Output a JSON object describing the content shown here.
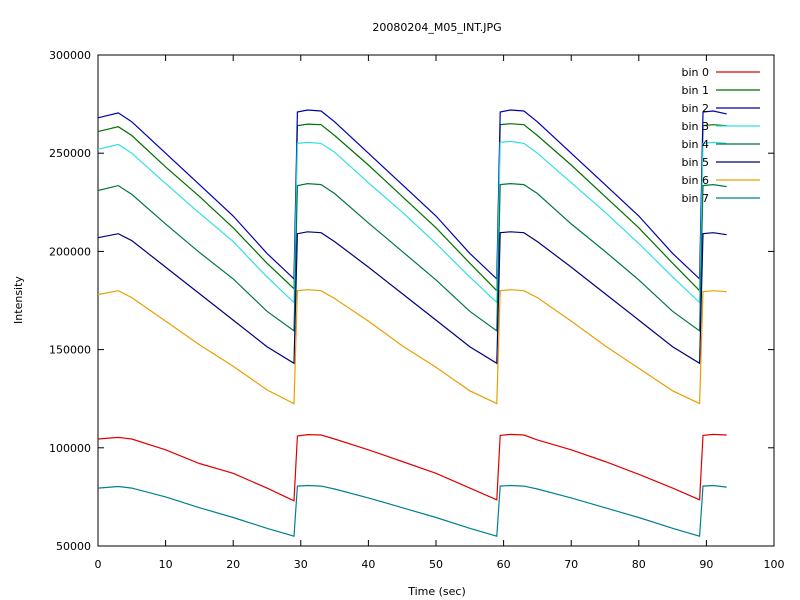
{
  "chart_data": {
    "type": "line",
    "title": "20080204_M05_INT.JPG",
    "xlabel": "Time (sec)",
    "ylabel": "Intensity",
    "xlim": [
      0,
      100
    ],
    "ylim": [
      50000,
      300000
    ],
    "xticks": [
      0,
      10,
      20,
      30,
      40,
      50,
      60,
      70,
      80,
      90,
      100
    ],
    "yticks": [
      50000,
      100000,
      150000,
      200000,
      250000,
      300000
    ],
    "ytick_labels": [
      "50000",
      "100000",
      "150000",
      "200000",
      "250000",
      "300000"
    ],
    "grid": false,
    "legend_position": "top-right",
    "x": [
      0,
      3,
      5,
      10,
      15,
      20,
      25,
      29,
      29.5,
      31,
      33,
      35,
      40,
      45,
      50,
      55,
      59,
      59.5,
      61,
      63,
      65,
      70,
      75,
      80,
      85,
      89,
      89.5,
      91,
      93
    ],
    "series": [
      {
        "name": "bin 0",
        "color": "#e00000",
        "values": [
          104500,
          105300,
          104500,
          99000,
          92000,
          87000,
          79500,
          73000,
          106000,
          106700,
          106500,
          104500,
          99000,
          93000,
          87000,
          79500,
          73500,
          106300,
          106800,
          106500,
          104000,
          99000,
          93000,
          86500,
          79500,
          73500,
          106300,
          106800,
          106500
        ]
      },
      {
        "name": "bin 1",
        "color": "#007000",
        "values": [
          261000,
          263500,
          259000,
          243000,
          228000,
          212000,
          194000,
          181000,
          264000,
          264800,
          264500,
          259000,
          244000,
          228000,
          212000,
          194000,
          180000,
          264500,
          265000,
          264500,
          259000,
          244000,
          228000,
          212000,
          194000,
          180000,
          264000,
          264500,
          264000
        ]
      },
      {
        "name": "bin 2",
        "color": "#0000b0",
        "values": [
          268000,
          270500,
          266000,
          250000,
          234000,
          218000,
          199000,
          186000,
          271000,
          272000,
          271500,
          266000,
          250000,
          234000,
          218000,
          199000,
          186000,
          271000,
          272000,
          271500,
          266000,
          250000,
          234000,
          218000,
          199000,
          186000,
          271000,
          271500,
          270000
        ]
      },
      {
        "name": "bin 3",
        "color": "#30e0e0",
        "values": [
          252000,
          254500,
          250000,
          234500,
          219500,
          205000,
          187000,
          174000,
          255000,
          255500,
          255000,
          250500,
          235000,
          220000,
          204000,
          187000,
          174000,
          255500,
          256000,
          255000,
          250000,
          235000,
          220000,
          204000,
          187000,
          174000,
          255000,
          255500,
          255000
        ]
      },
      {
        "name": "bin 4",
        "color": "#007840",
        "values": [
          231000,
          233500,
          229000,
          214000,
          199500,
          186000,
          169500,
          159500,
          233500,
          234500,
          234000,
          229500,
          214500,
          200000,
          185500,
          169500,
          159500,
          234000,
          234500,
          234000,
          229500,
          214000,
          200000,
          185500,
          169500,
          159500,
          233500,
          234000,
          233000
        ]
      },
      {
        "name": "bin 5",
        "color": "#000080",
        "values": [
          207000,
          209000,
          205500,
          192000,
          178500,
          165000,
          151500,
          143000,
          209000,
          210000,
          209500,
          205000,
          192000,
          178500,
          165000,
          151500,
          143000,
          209500,
          210000,
          209500,
          205000,
          192000,
          178500,
          165000,
          151500,
          143000,
          209000,
          209500,
          208500
        ]
      },
      {
        "name": "bin 6",
        "color": "#e8a000",
        "values": [
          178000,
          180000,
          176500,
          164500,
          152500,
          141500,
          129500,
          122500,
          180000,
          180500,
          180000,
          176000,
          164500,
          152000,
          141000,
          129000,
          122500,
          180000,
          180500,
          180000,
          176500,
          164500,
          152000,
          140500,
          129000,
          122500,
          179500,
          180000,
          179500
        ]
      },
      {
        "name": "bin 7",
        "color": "#008090",
        "values": [
          79500,
          80300,
          79500,
          75000,
          69500,
          64500,
          59000,
          55000,
          80500,
          80800,
          80500,
          79000,
          74500,
          69500,
          64500,
          59000,
          55000,
          80500,
          80800,
          80500,
          79000,
          74500,
          69500,
          64500,
          59000,
          55000,
          80500,
          80800,
          80000
        ]
      }
    ]
  }
}
